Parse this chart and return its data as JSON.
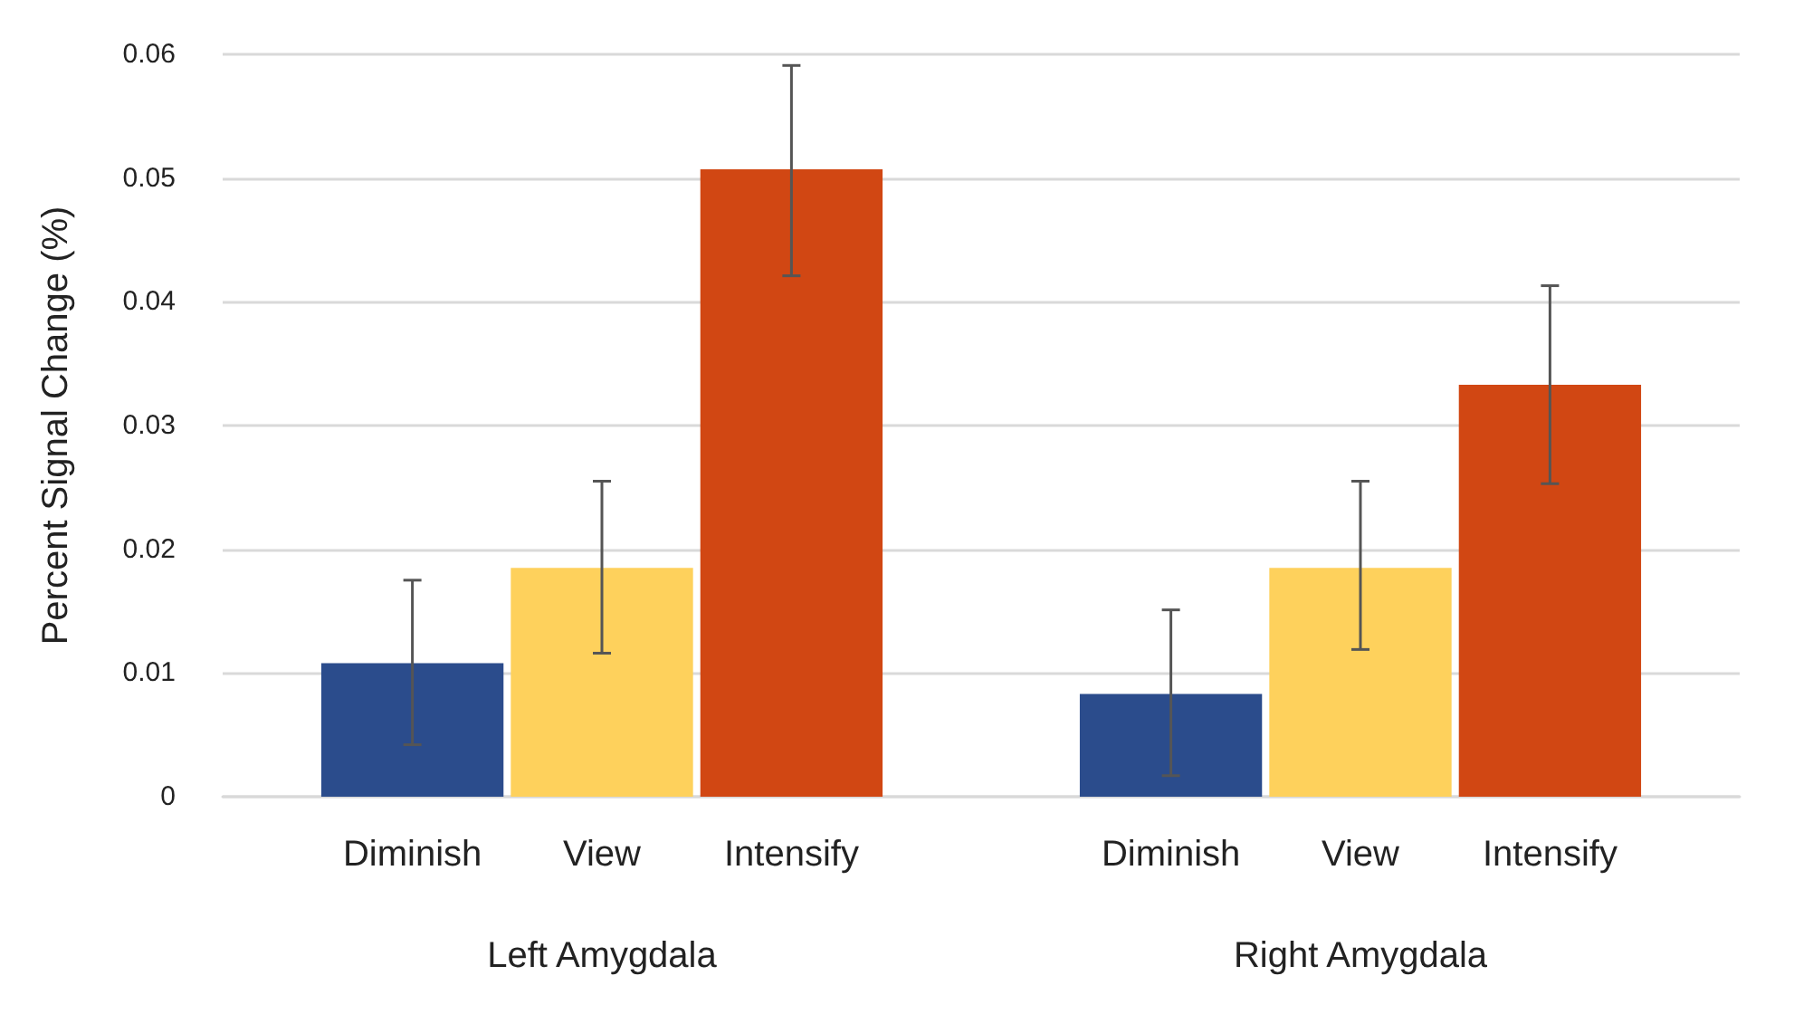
{
  "chart_data": {
    "type": "bar",
    "ylabel": "Percent Signal Change (%)",
    "categories": [
      "Left Amygdala",
      "Right Amygdala"
    ],
    "series": [
      {
        "name": "Diminish",
        "color": "#2b4c8c",
        "values": [
          0.0108,
          0.0083
        ],
        "errors": [
          [
            0.0042,
            0.0175
          ],
          [
            0.0017,
            0.0151
          ]
        ]
      },
      {
        "name": "View",
        "color": "#fed15c",
        "values": [
          0.0185,
          0.0185
        ],
        "errors": [
          [
            0.0116,
            0.0255
          ],
          [
            0.0119,
            0.0255
          ]
        ]
      },
      {
        "name": "Intensify",
        "color": "#d14713",
        "values": [
          0.0507,
          0.0333
        ],
        "errors": [
          [
            0.0421,
            0.0591
          ],
          [
            0.0253,
            0.0413
          ]
        ]
      }
    ],
    "ylim": [
      0,
      0.06
    ],
    "yticks": [
      0,
      0.01,
      0.02,
      0.03,
      0.04,
      0.05,
      0.06
    ],
    "grid": "y"
  }
}
